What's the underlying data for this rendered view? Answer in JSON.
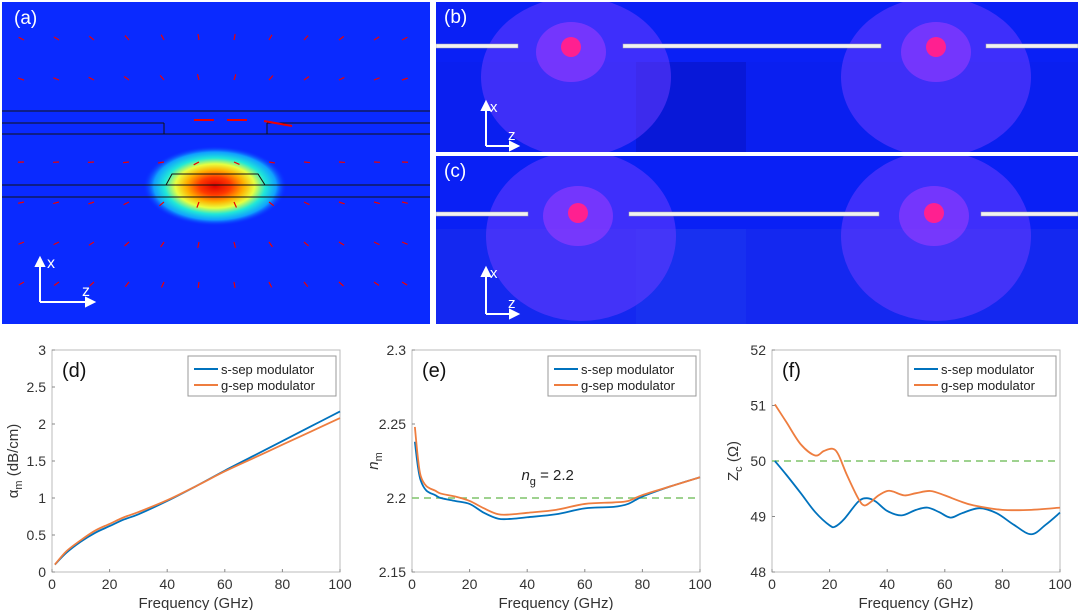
{
  "field_panels": [
    {
      "label": "(a)",
      "axis_x": "x",
      "axis_z": "z",
      "description": "optical mode field with electric field vectors"
    },
    {
      "label": "(b)",
      "axis_x": "x",
      "axis_z": "z",
      "description": "RF field distribution s-sep"
    },
    {
      "label": "(c)",
      "axis_x": "x",
      "axis_z": "z",
      "description": "RF field distribution g-sep"
    }
  ],
  "colors": {
    "s_sep": "#0072BD",
    "g_sep": "#EE7D3F",
    "reference": "#7FC36A",
    "axis": "#4d4d4d",
    "field_bg": "#0a2bff"
  },
  "chart_data": [
    {
      "type": "line",
      "panel_label": "(d)",
      "title": "",
      "xlabel": "Frequency (GHz)",
      "ylabel": "αm (dB/cm)",
      "ylabel_main": "α",
      "ylabel_sub": "m",
      "ylabel_unit": " (dB/cm)",
      "xlim": [
        0,
        100
      ],
      "ylim": [
        0,
        3
      ],
      "xticks": [
        0,
        20,
        40,
        60,
        80,
        100
      ],
      "yticks": [
        0,
        0.5,
        1,
        1.5,
        2,
        2.5,
        3
      ],
      "ytick_labels": [
        "0",
        "0.5",
        "1",
        "1.5",
        "2",
        "2.5",
        "3"
      ],
      "legend": "top-right",
      "series": [
        {
          "name": "s-sep modulator",
          "x": [
            1,
            5,
            10,
            15,
            20,
            25,
            30,
            40,
            50,
            60,
            70,
            80,
            90,
            100
          ],
          "values": [
            0.1,
            0.26,
            0.41,
            0.53,
            0.62,
            0.71,
            0.78,
            0.96,
            1.16,
            1.37,
            1.57,
            1.77,
            1.97,
            2.17
          ]
        },
        {
          "name": "g-sep modulator",
          "x": [
            1,
            5,
            10,
            15,
            20,
            25,
            30,
            40,
            50,
            60,
            70,
            80,
            90,
            100
          ],
          "values": [
            0.1,
            0.28,
            0.43,
            0.56,
            0.65,
            0.74,
            0.81,
            0.97,
            1.16,
            1.36,
            1.54,
            1.72,
            1.9,
            2.08
          ]
        }
      ]
    },
    {
      "type": "line",
      "panel_label": "(e)",
      "title": "",
      "xlabel": "Frequency (GHz)",
      "ylabel": "nm",
      "ylabel_main": "n",
      "ylabel_sub": "m",
      "ylabel_unit": "",
      "xlim": [
        0,
        100
      ],
      "ylim": [
        2.15,
        2.3
      ],
      "xticks": [
        0,
        20,
        40,
        60,
        80,
        100
      ],
      "yticks": [
        2.15,
        2.2,
        2.25,
        2.3
      ],
      "ytick_labels": [
        "2.15",
        "2.2",
        "2.25",
        "2.3"
      ],
      "legend": "top-right",
      "reference_line": {
        "value": 2.2,
        "label_main": "n",
        "label_sub": "g",
        "label_value": " = 2.2"
      },
      "series": [
        {
          "name": "s-sep modulator",
          "x": [
            1,
            2,
            3,
            5,
            8,
            10,
            15,
            20,
            25,
            30,
            35,
            40,
            50,
            60,
            70,
            75,
            80,
            90,
            100
          ],
          "values": [
            2.238,
            2.222,
            2.212,
            2.205,
            2.202,
            2.2,
            2.198,
            2.196,
            2.19,
            2.186,
            2.186,
            2.187,
            2.189,
            2.193,
            2.194,
            2.196,
            2.201,
            2.208,
            2.214
          ]
        },
        {
          "name": "g-sep modulator",
          "x": [
            1,
            2,
            3,
            5,
            8,
            10,
            15,
            20,
            25,
            30,
            35,
            40,
            50,
            60,
            70,
            75,
            80,
            90,
            100
          ],
          "values": [
            2.248,
            2.228,
            2.215,
            2.208,
            2.205,
            2.203,
            2.201,
            2.198,
            2.193,
            2.189,
            2.189,
            2.19,
            2.192,
            2.196,
            2.197,
            2.198,
            2.202,
            2.208,
            2.214
          ]
        }
      ]
    },
    {
      "type": "line",
      "panel_label": "(f)",
      "title": "",
      "xlabel": "Frequency (GHz)",
      "ylabel": "Zc (Ω)",
      "ylabel_main": "Z",
      "ylabel_sub": "c",
      "ylabel_unit": " (Ω)",
      "xlim": [
        0,
        100
      ],
      "ylim": [
        48,
        52
      ],
      "xticks": [
        0,
        20,
        40,
        60,
        80,
        100
      ],
      "yticks": [
        48,
        49,
        50,
        51,
        52
      ],
      "ytick_labels": [
        "48",
        "49",
        "50",
        "51",
        "52"
      ],
      "legend": "top-right",
      "reference_line": {
        "value": 50
      },
      "series": [
        {
          "name": "s-sep modulator",
          "x": [
            1,
            5,
            10,
            15,
            20,
            22,
            25,
            30,
            33,
            36,
            40,
            45,
            50,
            54,
            58,
            62,
            66,
            72,
            78,
            84,
            90,
            95,
            100
          ],
          "values": [
            50.0,
            49.75,
            49.42,
            49.08,
            48.84,
            48.82,
            48.95,
            49.27,
            49.33,
            49.27,
            49.1,
            49.02,
            49.12,
            49.16,
            49.08,
            48.98,
            49.06,
            49.15,
            49.06,
            48.85,
            48.68,
            48.85,
            49.07
          ]
        },
        {
          "name": "g-sep modulator",
          "x": [
            1,
            5,
            10,
            15,
            18,
            21,
            23,
            26,
            30,
            32,
            34,
            37,
            40,
            42,
            46,
            50,
            55,
            60,
            65,
            70,
            80,
            90,
            100
          ],
          "values": [
            51.02,
            50.7,
            50.3,
            50.1,
            50.18,
            50.22,
            50.12,
            49.75,
            49.32,
            49.2,
            49.25,
            49.38,
            49.46,
            49.45,
            49.38,
            49.42,
            49.46,
            49.38,
            49.28,
            49.2,
            49.12,
            49.12,
            49.16
          ]
        }
      ]
    }
  ]
}
